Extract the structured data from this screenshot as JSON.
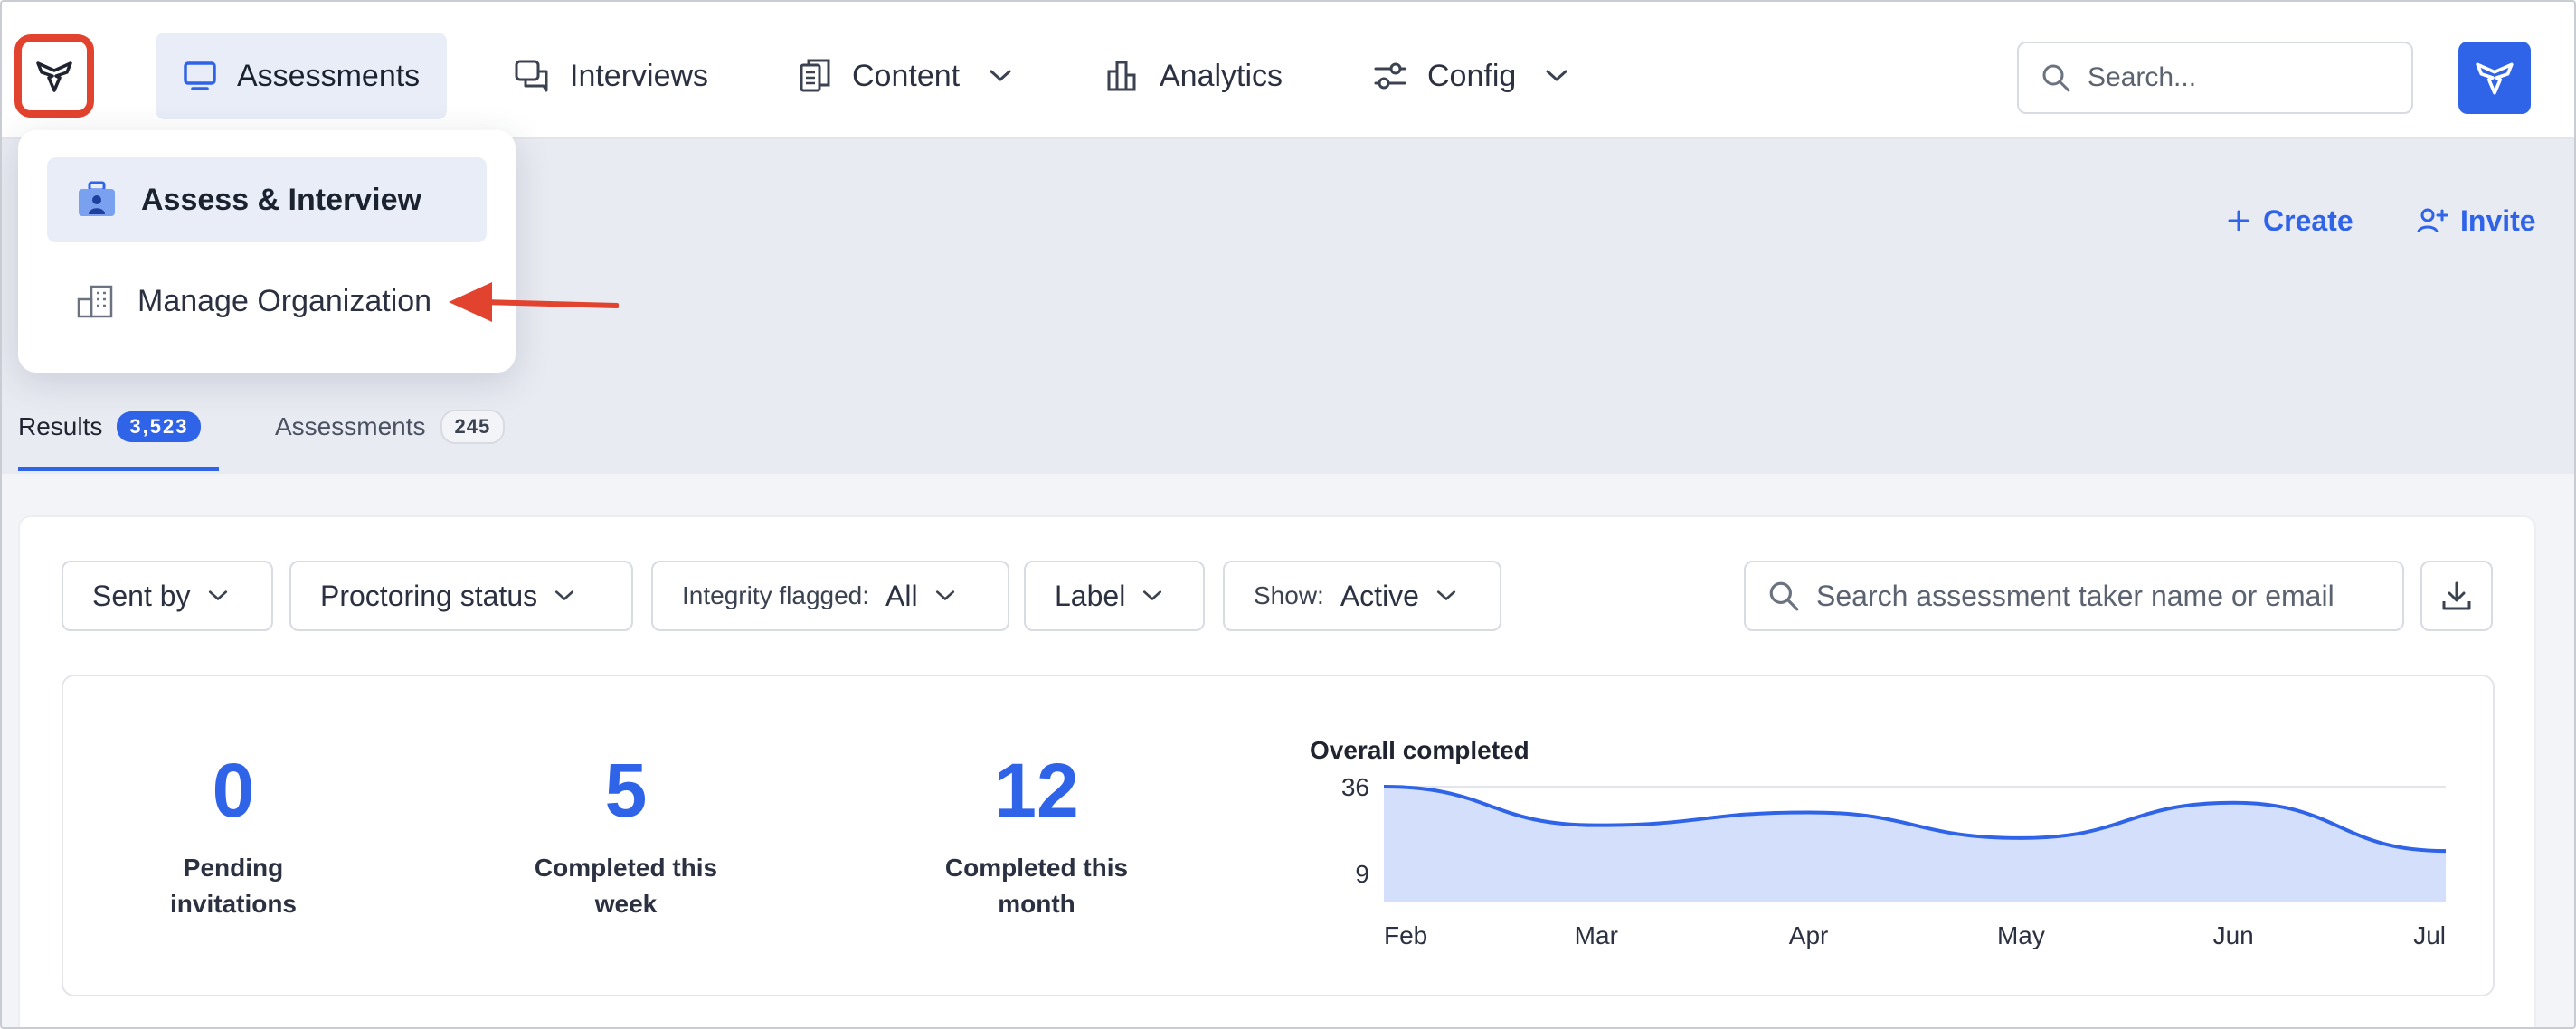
{
  "nav": {
    "items": [
      {
        "label": "Assessments",
        "icon": "monitor-icon",
        "active": true
      },
      {
        "label": "Interviews",
        "icon": "chat-bubbles-icon",
        "active": false
      },
      {
        "label": "Content",
        "icon": "documents-icon",
        "active": false,
        "dropdown": true
      },
      {
        "label": "Analytics",
        "icon": "bar-chart-icon",
        "active": false
      },
      {
        "label": "Config",
        "icon": "sliders-icon",
        "active": false,
        "dropdown": true
      }
    ],
    "search_placeholder": "Search..."
  },
  "menu": {
    "items": [
      {
        "label": "Assess & Interview",
        "icon": "briefcase-user-icon",
        "active": true
      },
      {
        "label": "Manage Organization",
        "icon": "buildings-icon",
        "active": false
      }
    ]
  },
  "header": {
    "create_label": "Create",
    "invite_label": "Invite"
  },
  "tabs": [
    {
      "label": "Results",
      "count": "3,523",
      "active": true
    },
    {
      "label": "Assessments",
      "count": "245",
      "active": false
    }
  ],
  "filters": {
    "sent_by": "Sent by",
    "proctoring": "Proctoring status",
    "integrity_label": "Integrity flagged:",
    "integrity_value": "All",
    "label": "Label",
    "show_label": "Show:",
    "show_value": "Active",
    "search_placeholder": "Search assessment taker name or email"
  },
  "stats": [
    {
      "value": "0",
      "caption_line1": "Pending",
      "caption_line2": "invitations"
    },
    {
      "value": "5",
      "caption_line1": "Completed this",
      "caption_line2": "week"
    },
    {
      "value": "12",
      "caption_line1": "Completed this",
      "caption_line2": "month"
    }
  ],
  "colors": {
    "accent": "#2f63e8",
    "highlight": "#e2432f",
    "area_fill": "#d4e0fb"
  },
  "chart_data": {
    "type": "area",
    "title": "Overall completed",
    "categories": [
      "Feb",
      "Mar",
      "Apr",
      "May",
      "Jun",
      "Jul"
    ],
    "values": [
      36,
      24,
      28,
      20,
      31,
      16
    ],
    "yticks": [
      36,
      9
    ],
    "ylim": [
      0,
      36
    ],
    "grid": false
  }
}
